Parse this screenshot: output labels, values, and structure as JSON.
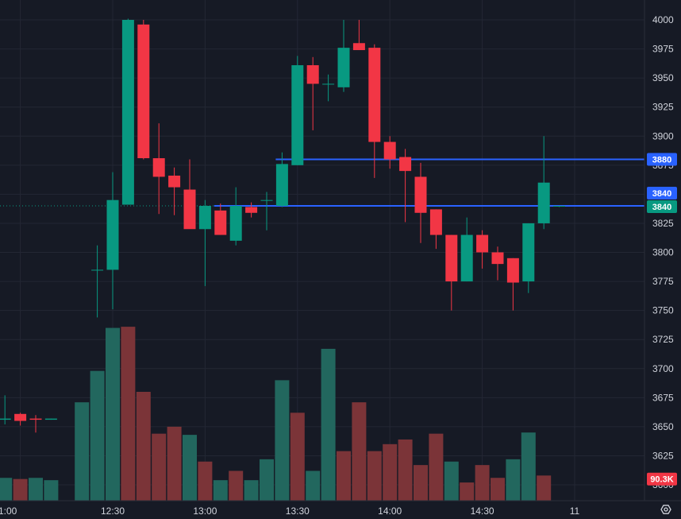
{
  "chart_data": {
    "type": "candlestick",
    "interval_minutes": 5,
    "x_ticks": [
      "1:00",
      "12:30",
      "13:00",
      "13:30",
      "14:00",
      "14:30",
      "11"
    ],
    "y_ticks": [
      4000,
      3975,
      3950,
      3925,
      3900,
      3875,
      3850,
      3825,
      3800,
      3775,
      3750,
      3725,
      3700,
      3675,
      3650,
      3625,
      3600
    ],
    "ylim": [
      3591,
      4007
    ],
    "colors": {
      "up": "#089981",
      "down": "#f23645",
      "up_volume": "#22675e",
      "down_volume": "#7b3438",
      "line": "#2962ff",
      "background": "#161a25",
      "grid": "#232734"
    },
    "candles": [
      {
        "time": "11:40",
        "open": 3662,
        "high": 3677,
        "low": 3628,
        "close": 3643
      },
      {
        "time": "11:45",
        "open": 3643,
        "high": 3648,
        "low": 3622,
        "close": 3632
      },
      {
        "time": "11:50",
        "open": 3635,
        "high": 3657,
        "low": 3629,
        "close": 3655
      },
      {
        "time": "11:55",
        "open": 3656,
        "high": 3677,
        "low": 3652,
        "close": 3657
      },
      {
        "time": "12:00",
        "open": 3661,
        "high": 3662,
        "low": 3651,
        "close": 3655
      },
      {
        "time": "12:05",
        "open": 3657,
        "high": 3660,
        "low": 3645,
        "close": 3656
      },
      {
        "time": "12:10",
        "open": 3656,
        "high": 3657,
        "low": 3656,
        "close": 3657
      },
      {
        "time": "12:25",
        "open": 3785,
        "high": 3806,
        "low": 3744,
        "close": 3785
      },
      {
        "time": "12:30",
        "open": 3785,
        "high": 3869,
        "low": 3751,
        "close": 3845
      },
      {
        "time": "12:35",
        "open": 3841,
        "high": 4001,
        "low": 3841,
        "close": 4000
      },
      {
        "time": "12:40",
        "open": 3996,
        "high": 4000,
        "low": 3880,
        "close": 3881
      },
      {
        "time": "12:45",
        "open": 3881,
        "high": 3911,
        "low": 3833,
        "close": 3865
      },
      {
        "time": "12:50",
        "open": 3866,
        "high": 3873,
        "low": 3832,
        "close": 3856
      },
      {
        "time": "12:55",
        "open": 3854,
        "high": 3880,
        "low": 3821,
        "close": 3820
      },
      {
        "time": "13:00",
        "open": 3820,
        "high": 3845,
        "low": 3771,
        "close": 3840
      },
      {
        "time": "13:05",
        "open": 3836,
        "high": 3842,
        "low": 3815,
        "close": 3815
      },
      {
        "time": "13:10",
        "open": 3810,
        "high": 3856,
        "low": 3806,
        "close": 3840
      },
      {
        "time": "13:15",
        "open": 3839,
        "high": 3843,
        "low": 3830,
        "close": 3834
      },
      {
        "time": "13:20",
        "open": 3845,
        "high": 3852,
        "low": 3819,
        "close": 3845
      },
      {
        "time": "13:25",
        "open": 3840,
        "high": 3886,
        "low": 3839,
        "close": 3876
      },
      {
        "time": "13:30",
        "open": 3875,
        "high": 3969,
        "low": 3875,
        "close": 3961
      },
      {
        "time": "13:35",
        "open": 3961,
        "high": 3968,
        "low": 3905,
        "close": 3945
      },
      {
        "time": "13:40",
        "open": 3945,
        "high": 3953,
        "low": 3930,
        "close": 3945
      },
      {
        "time": "13:45",
        "open": 3942,
        "high": 4000,
        "low": 3938,
        "close": 3976
      },
      {
        "time": "13:50",
        "open": 3980,
        "high": 4000,
        "low": 3974,
        "close": 3974
      },
      {
        "time": "13:55",
        "open": 3976,
        "high": 3979,
        "low": 3864,
        "close": 3895
      },
      {
        "time": "14:00",
        "open": 3895,
        "high": 3900,
        "low": 3872,
        "close": 3880
      },
      {
        "time": "14:05",
        "open": 3882,
        "high": 3889,
        "low": 3826,
        "close": 3870
      },
      {
        "time": "14:10",
        "open": 3865,
        "high": 3877,
        "low": 3808,
        "close": 3834
      },
      {
        "time": "14:15",
        "open": 3837,
        "high": 3837,
        "low": 3803,
        "close": 3815
      },
      {
        "time": "14:20",
        "open": 3815,
        "high": 3815,
        "low": 3750,
        "close": 3775
      },
      {
        "time": "14:25",
        "open": 3775,
        "high": 3830,
        "low": 3775,
        "close": 3815
      },
      {
        "time": "14:30",
        "open": 3815,
        "high": 3819,
        "low": 3786,
        "close": 3800
      },
      {
        "time": "14:35",
        "open": 3800,
        "high": 3805,
        "low": 3776,
        "close": 3790
      },
      {
        "time": "14:40",
        "open": 3795,
        "high": 3795,
        "low": 3750,
        "close": 3774
      },
      {
        "time": "14:45",
        "open": 3775,
        "high": 3825,
        "low": 3765,
        "close": 3825
      },
      {
        "time": "14:50",
        "open": 3825,
        "high": 3900,
        "low": 3820,
        "close": 3860
      },
      {
        "time": "14:55",
        "open": 3840,
        "high": 3840,
        "low": 3839,
        "close": 3840
      }
    ],
    "volume_bars": [
      {
        "time": "11:40",
        "direction": "down",
        "level": 3613
      },
      {
        "time": "11:45",
        "direction": "down",
        "level": 3610
      },
      {
        "time": "11:50",
        "direction": "up",
        "level": 3612
      },
      {
        "time": "11:55",
        "direction": "up",
        "level": 3606
      },
      {
        "time": "12:00",
        "direction": "down",
        "level": 3605
      },
      {
        "time": "12:05",
        "direction": "up",
        "level": 3606
      },
      {
        "time": "12:10",
        "direction": "up",
        "level": 3604
      },
      {
        "time": "12:20",
        "direction": "up",
        "level": 3671
      },
      {
        "time": "12:25",
        "direction": "up",
        "level": 3698
      },
      {
        "time": "12:30",
        "direction": "up",
        "level": 3735
      },
      {
        "time": "12:35",
        "direction": "down",
        "level": 3736
      },
      {
        "time": "12:40",
        "direction": "down",
        "level": 3680
      },
      {
        "time": "12:45",
        "direction": "down",
        "level": 3644
      },
      {
        "time": "12:50",
        "direction": "down",
        "level": 3650
      },
      {
        "time": "12:55",
        "direction": "up",
        "level": 3643
      },
      {
        "time": "13:00",
        "direction": "down",
        "level": 3620
      },
      {
        "time": "13:05",
        "direction": "up",
        "level": 3604
      },
      {
        "time": "13:10",
        "direction": "down",
        "level": 3612
      },
      {
        "time": "13:15",
        "direction": "up",
        "level": 3604
      },
      {
        "time": "13:20",
        "direction": "up",
        "level": 3622
      },
      {
        "time": "13:25",
        "direction": "up",
        "level": 3690
      },
      {
        "time": "13:30",
        "direction": "down",
        "level": 3662
      },
      {
        "time": "13:35",
        "direction": "up",
        "level": 3612
      },
      {
        "time": "13:40",
        "direction": "up",
        "level": 3717
      },
      {
        "time": "13:45",
        "direction": "down",
        "level": 3629
      },
      {
        "time": "13:50",
        "direction": "down",
        "level": 3671
      },
      {
        "time": "13:55",
        "direction": "down",
        "level": 3629
      },
      {
        "time": "14:00",
        "direction": "down",
        "level": 3635
      },
      {
        "time": "14:05",
        "direction": "down",
        "level": 3639
      },
      {
        "time": "14:10",
        "direction": "down",
        "level": 3617
      },
      {
        "time": "14:15",
        "direction": "down",
        "level": 3644
      },
      {
        "time": "14:20",
        "direction": "up",
        "level": 3620
      },
      {
        "time": "14:25",
        "direction": "down",
        "level": 3602
      },
      {
        "time": "14:30",
        "direction": "down",
        "level": 3617
      },
      {
        "time": "14:35",
        "direction": "down",
        "level": 3606
      },
      {
        "time": "14:40",
        "direction": "up",
        "level": 3622
      },
      {
        "time": "14:45",
        "direction": "up",
        "level": 3645
      },
      {
        "time": "14:50",
        "direction": "down",
        "level": 3608
      }
    ],
    "horizontal_lines": [
      {
        "price": 3880
      },
      {
        "price": 3840
      }
    ],
    "current_price_line": 3840,
    "price_tags": [
      {
        "label": "3880",
        "price": 3880,
        "color": "#2962ff"
      },
      {
        "label": "3840",
        "price": 3840,
        "color": "#2962ff"
      },
      {
        "label": "3840",
        "price": 3840,
        "color": "#089981"
      },
      {
        "label": "90.3K",
        "price": 3605,
        "color": "#f23645"
      }
    ]
  }
}
